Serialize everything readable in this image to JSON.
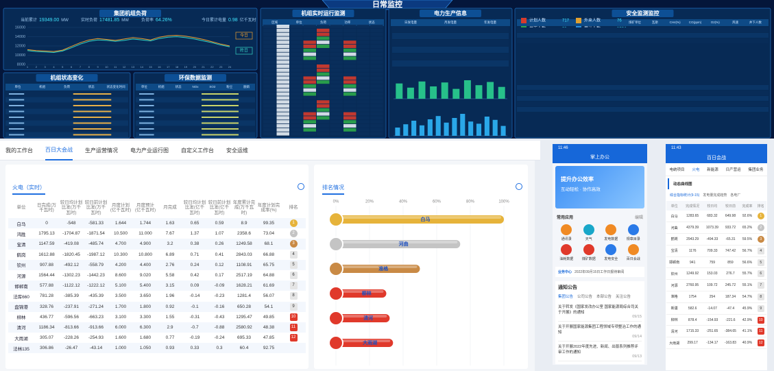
{
  "dashboard": {
    "title": "日常监控",
    "load": {
      "title": "集团机组负荷",
      "stats": [
        {
          "label": "当前累计",
          "value": "19349.00",
          "unit": "MW"
        },
        {
          "label": "实时负荷",
          "value": "17481.85",
          "unit": "MW"
        },
        {
          "label": "负荷率",
          "value": "64.26%"
        },
        {
          "label": "今日累计电量",
          "value": "0.98",
          "unit": "亿千瓦时"
        }
      ],
      "chart": {
        "type": "line",
        "categories": [
          "1",
          "2",
          "3",
          "4",
          "5",
          "6",
          "7",
          "8",
          "9",
          "10",
          "11",
          "12",
          "13",
          "14",
          "15",
          "16",
          "17",
          "18",
          "19",
          "20",
          "21",
          "22",
          "23",
          "24"
        ],
        "ylim": [
          8000,
          16000
        ],
        "yticks": [
          16000,
          14000,
          12000,
          10000,
          8000
        ],
        "series": [
          {
            "name": "今日",
            "color": "#f0a030",
            "values": [
              11200,
              11000,
              10900,
              10800,
              11100,
              11900,
              12700,
              13300,
              13600,
              13400,
              13200,
              13500,
              13800,
              13600,
              13300,
              13900,
              14200,
              14300,
              14100,
              13800,
              13400,
              12900,
              12400,
              12000
            ]
          },
          {
            "name": "昨日",
            "color": "#35d6c6",
            "values": [
              11000,
              10800,
              10700,
              10600,
              10900,
              11600,
              12400,
              13000,
              13300,
              13200,
              13000,
              13200,
              13500,
              13300,
              13100,
              13600,
              13900,
              14000,
              13800,
              13500,
              13100,
              12700,
              12200,
              11800
            ]
          }
        ]
      }
    },
    "panels": [
      {
        "title": "机组状态变化",
        "headers": [
          "单位",
          "机组",
          "负荷",
          "状态",
          "状态变化时间"
        ]
      },
      {
        "title": "环保数据监测",
        "headers": [
          "单位",
          "机组",
          "状态",
          "NOx",
          "SO2",
          "粉尘",
          "脱硝"
        ]
      },
      {
        "title": "机组实时运行监测",
        "headers": [
          "区域",
          "单位",
          "负荷",
          "功率",
          "状态"
        ]
      },
      {
        "title": "电力生产信息",
        "headers": [
          "日发电量",
          "月发电量",
          "年发电量"
        ]
      },
      {
        "title": "安全监测监控",
        "headers": [
          "煤矿单位",
          "瓦斯",
          "CH4(%)",
          "CO(ppm)",
          "O2(%)",
          "风速",
          "井下人数"
        ]
      }
    ],
    "production": [
      {
        "type": "bar",
        "ylim": [
          0,
          100
        ],
        "values": [
          62,
          45,
          70,
          50,
          66,
          40,
          75,
          55,
          68,
          48
        ]
      },
      {
        "type": "bar",
        "ylim": [
          0,
          100
        ],
        "values": [
          30,
          42,
          55,
          38,
          60,
          72,
          48,
          65,
          80,
          52,
          44,
          70,
          58,
          36
        ]
      }
    ],
    "safety_stats": [
      {
        "label": "计划人数",
        "value": "717"
      },
      {
        "label": "外来人数",
        "value": "76"
      },
      {
        "label": "井下人数",
        "value": "81"
      },
      {
        "label": "累计人数",
        "value": "1584"
      }
    ]
  },
  "workbench": {
    "tabs": [
      "我的工作台",
      "百日大会战",
      "生产运营情况",
      "电力产业运行图",
      "自定义工作台",
      "安全运维"
    ],
    "active_tab": 1,
    "table": {
      "title": "火电（实时）",
      "headers": [
        "单位",
        "日完成(万千瓦时)",
        "较日均计划比发(万千瓦时)",
        "较日前计划比发(万千瓦时)",
        "月度计划(亿千瓦时)",
        "月度预计(亿千瓦时)",
        "月完成",
        "较日均计划比发(亿千瓦时)",
        "较日前计划比发(亿千瓦时)",
        "年度累计完成(万千瓦时)",
        "年度计划完成率(%)",
        "排名"
      ],
      "rows": [
        [
          "白马",
          "0",
          "-548",
          "-581.33",
          "1.644",
          "1.744",
          "1.63",
          "0.65",
          "0.59",
          "8.9",
          "99.35"
        ],
        [
          "鸿胜",
          "1795.13",
          "-1704.87",
          "-1871.54",
          "10.500",
          "11.000",
          "7.67",
          "1.37",
          "1.07",
          "2358.6",
          "73.04"
        ],
        [
          "宝清",
          "1147.59",
          "-419.08",
          "-485.74",
          "4.700",
          "4.900",
          "3.2",
          "0.38",
          "0.26",
          "1249.58",
          "68.1"
        ],
        [
          "鹤岗",
          "1612.88",
          "-1820.45",
          "-1987.12",
          "10.300",
          "10.800",
          "6.89",
          "0.71",
          "0.41",
          "2843.03",
          "66.88"
        ],
        [
          "钦州",
          "907.88",
          "-492.12",
          "-558.79",
          "4.200",
          "4.400",
          "2.76",
          "0.24",
          "0.12",
          "1108.91",
          "65.75"
        ],
        [
          "河源",
          "1564.44",
          "-1302.23",
          "-1442.23",
          "8.600",
          "9.020",
          "5.58",
          "0.42",
          "0.17",
          "2517.19",
          "64.88"
        ],
        [
          "邯郸南",
          "577.88",
          "-1122.12",
          "-1222.12",
          "5.100",
          "5.400",
          "3.15",
          "0.09",
          "-0.09",
          "1628.21",
          "61.69"
        ],
        [
          "法库660",
          "781.28",
          "-385.39",
          "-435.39",
          "3.500",
          "3.650",
          "1.96",
          "-0.14",
          "-0.23",
          "1281.4",
          "56.07"
        ],
        [
          "盘锦港",
          "328.76",
          "-237.91",
          "-271.24",
          "1.700",
          "1.800",
          "0.92",
          "-0.1",
          "-0.16",
          "650.28",
          "54.1"
        ],
        [
          "柳林",
          "436.77",
          "-596.56",
          "-663.23",
          "3.100",
          "3.300",
          "1.55",
          "-0.31",
          "-0.43",
          "1295.47",
          "49.85"
        ],
        [
          "清河",
          "1186.34",
          "-813.66",
          "-913.66",
          "6.000",
          "6.300",
          "2.9",
          "-0.7",
          "-0.88",
          "2580.92",
          "48.38"
        ],
        [
          "大雨湖",
          "305.07",
          "-228.26",
          "-254.93",
          "1.600",
          "1.680",
          "0.77",
          "-0.19",
          "-0.24",
          "695.33",
          "47.85"
        ],
        [
          "法林135",
          "306.86",
          "-26.47",
          "-43.14",
          "1.000",
          "1.050",
          "0.93",
          "0.33",
          "0.3",
          "60.4",
          "92.75"
        ]
      ],
      "ranks": [
        1,
        2,
        3,
        4,
        5,
        6,
        7,
        8,
        9,
        10,
        11,
        12,
        null
      ]
    },
    "ranking": {
      "title": "排名情况",
      "type": "bar",
      "xlim": [
        0,
        100
      ],
      "xticks": [
        {
          "value": 0,
          "label": "0%"
        },
        {
          "value": 20,
          "label": "20%"
        },
        {
          "value": 40,
          "label": "40%"
        },
        {
          "value": 60,
          "label": "60%"
        },
        {
          "value": 80,
          "label": "80%"
        },
        {
          "value": 100,
          "label": "100%"
        }
      ],
      "categories": [
        "白马",
        "河曲",
        "准格",
        "柳林",
        "清河",
        "大雨湖"
      ],
      "values": [
        100,
        74,
        50,
        30,
        32,
        34
      ],
      "colors": [
        "#e6b33a",
        "#c4c4c4",
        "#c98a45",
        "#e0392b",
        "#e0392b",
        "#e0392b"
      ]
    }
  },
  "mobile_home": {
    "time": "11:46",
    "title": "掌上办公",
    "banner": [
      "提升办公效率",
      "互动轻松 · 协作高效"
    ],
    "apps_title": "常用应用",
    "edit": "编辑",
    "apps": [
      "通讯录",
      "天气",
      "发电数据",
      "规章目录",
      "油耗数据",
      "煤矿数据",
      "发电安全",
      "百日会战"
    ],
    "business": "业务中心",
    "business_text": "2022年09月15日工作日报待审阅",
    "notice_title": "通知公告",
    "notice_tabs": [
      "集团公告",
      "公司公告",
      "本部公告",
      "关注公告"
    ],
    "notices": [
      {
        "title": "关于转发《国家发改办公室 国家能源局综合司关于开展》的通知",
        "date": "09/15"
      },
      {
        "title": "关于开展国家能源集团工程领域专项整治工作的通知",
        "date": "09/14"
      },
      {
        "title": "关于开展2022年度先进、新闻、出版系列推荐评审工作的通知",
        "date": "09/13"
      }
    ]
  },
  "mobile_rank": {
    "time": "11:43",
    "title": "百日会战",
    "tabs": [
      "电统项目",
      "火电",
      "新能源",
      "日产营运",
      "集团业务"
    ],
    "section": "动态曲线图",
    "subtabs": [
      "综合指标统计(9-15)",
      "发电量完成趋势",
      "各电厂"
    ],
    "headers": [
      "单位",
      "完成情况",
      "较日均",
      "较日前",
      "完成率",
      "排名"
    ],
    "rows": [
      [
        "白马",
        "1283.65",
        "683.32",
        "649.98",
        "92.6%"
      ],
      [
        "河曲",
        "4379.39",
        "1073.39",
        "933.72",
        "65.2%"
      ],
      [
        "鹤岗",
        "2943.29",
        "-494.33",
        "-65.31",
        "59.5%"
      ],
      [
        "宝清",
        "1176",
        "709.33",
        "747.42",
        "56.7%"
      ],
      [
        "邯郸南",
        "941",
        "759",
        "859",
        "56.6%"
      ],
      [
        "钦州",
        "1249.92",
        "153.03",
        "276.7",
        "55.7%"
      ],
      [
        "河源",
        "2760.95",
        "109.72",
        "245.72",
        "55.1%"
      ],
      [
        "准格",
        "1754",
        "254",
        "187.34",
        "54.7%"
      ],
      [
        "新疆",
        "582.6",
        "-14.07",
        "-47.4",
        "45.9%"
      ],
      [
        "柳林",
        "878.4",
        "-154.93",
        "-221.6",
        "42.9%"
      ],
      [
        "清河",
        "1715.33",
        "-251.65",
        "-384.65",
        "41.1%"
      ],
      [
        "大雨湖",
        "299.17",
        "-134.17",
        "-163.83",
        "40.9%"
      ]
    ],
    "ranks": [
      1,
      2,
      3,
      4,
      5,
      6,
      7,
      8,
      9,
      10,
      11,
      12
    ]
  }
}
